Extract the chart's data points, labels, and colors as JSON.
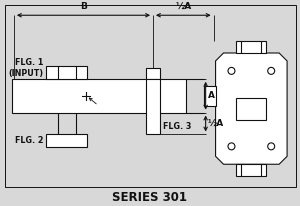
{
  "bg_color": "#d8d8d8",
  "line_color": "#111111",
  "title": "SERIES 301",
  "title_fontsize": 8.5,
  "label_fontsize": 5.8,
  "annotation_fontsize": 6.5,
  "flg1_label": "FLG. 1\n(INPUT)",
  "flg2_label": "FLG. 2",
  "flg3_label": "FLG. 3",
  "dim_B": "B",
  "dim_halfA_top": "½A",
  "dim_A": "A",
  "dim_halfA_bot": "½A"
}
